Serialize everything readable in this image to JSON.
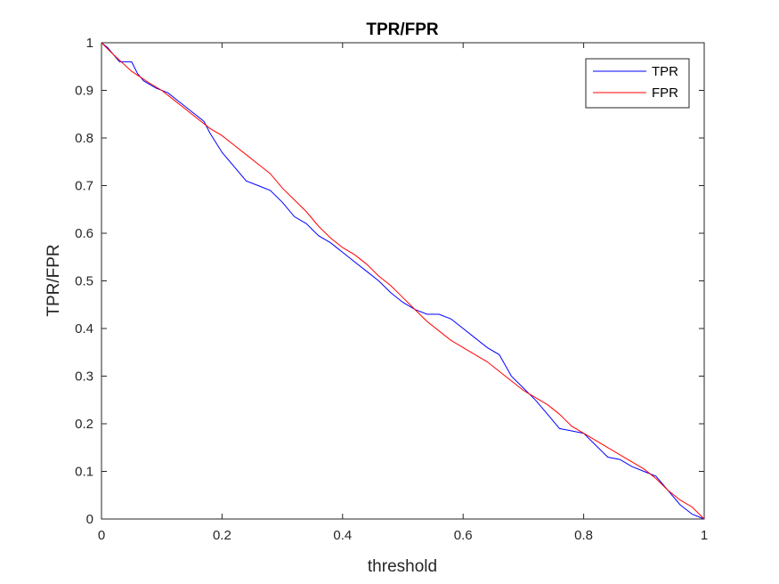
{
  "chart_data": {
    "type": "line",
    "title": "TPR/FPR",
    "xlabel": "threshold",
    "ylabel": "TPR/FPR",
    "xlim": [
      0,
      1
    ],
    "ylim": [
      0,
      1
    ],
    "xticks": [
      0,
      0.2,
      0.4,
      0.6,
      0.8,
      1
    ],
    "xtick_labels": [
      "0",
      "0.2",
      "0.4",
      "0.6",
      "0.8",
      "1"
    ],
    "yticks": [
      0,
      0.1,
      0.2,
      0.3,
      0.4,
      0.5,
      0.6,
      0.7,
      0.8,
      0.9,
      1
    ],
    "ytick_labels": [
      "0",
      "0.1",
      "0.2",
      "0.3",
      "0.4",
      "0.5",
      "0.6",
      "0.7",
      "0.8",
      "0.9",
      "1"
    ],
    "grid": false,
    "legend": {
      "position": "top-right"
    },
    "series": [
      {
        "name": "TPR",
        "color": "#0000ff",
        "x": [
          0,
          0.01,
          0.02,
          0.03,
          0.05,
          0.06,
          0.07,
          0.09,
          0.11,
          0.13,
          0.15,
          0.17,
          0.18,
          0.2,
          0.22,
          0.24,
          0.26,
          0.28,
          0.3,
          0.32,
          0.34,
          0.36,
          0.38,
          0.4,
          0.42,
          0.44,
          0.46,
          0.48,
          0.5,
          0.52,
          0.54,
          0.56,
          0.58,
          0.6,
          0.62,
          0.64,
          0.66,
          0.68,
          0.7,
          0.72,
          0.74,
          0.76,
          0.78,
          0.8,
          0.82,
          0.84,
          0.86,
          0.88,
          0.9,
          0.92,
          0.94,
          0.96,
          0.98,
          1
        ],
        "y": [
          1,
          0.99,
          0.975,
          0.96,
          0.96,
          0.935,
          0.92,
          0.905,
          0.895,
          0.875,
          0.855,
          0.835,
          0.81,
          0.77,
          0.74,
          0.71,
          0.7,
          0.69,
          0.665,
          0.635,
          0.62,
          0.595,
          0.58,
          0.56,
          0.54,
          0.52,
          0.5,
          0.475,
          0.455,
          0.44,
          0.43,
          0.43,
          0.42,
          0.4,
          0.38,
          0.36,
          0.345,
          0.3,
          0.275,
          0.25,
          0.22,
          0.19,
          0.185,
          0.18,
          0.155,
          0.13,
          0.125,
          0.11,
          0.1,
          0.09,
          0.06,
          0.03,
          0.01,
          0
        ]
      },
      {
        "name": "FPR",
        "color": "#ff0000",
        "x": [
          0,
          0.02,
          0.05,
          0.08,
          0.1,
          0.12,
          0.14,
          0.16,
          0.18,
          0.2,
          0.22,
          0.24,
          0.26,
          0.28,
          0.3,
          0.32,
          0.34,
          0.36,
          0.38,
          0.4,
          0.42,
          0.44,
          0.46,
          0.48,
          0.5,
          0.52,
          0.54,
          0.56,
          0.58,
          0.6,
          0.62,
          0.64,
          0.66,
          0.68,
          0.7,
          0.72,
          0.74,
          0.76,
          0.78,
          0.8,
          0.82,
          0.84,
          0.86,
          0.88,
          0.9,
          0.92,
          0.94,
          0.96,
          0.98,
          1
        ],
        "y": [
          1,
          0.975,
          0.94,
          0.915,
          0.9,
          0.88,
          0.86,
          0.84,
          0.82,
          0.805,
          0.785,
          0.765,
          0.745,
          0.725,
          0.695,
          0.67,
          0.645,
          0.615,
          0.59,
          0.57,
          0.555,
          0.535,
          0.51,
          0.49,
          0.465,
          0.44,
          0.415,
          0.395,
          0.375,
          0.36,
          0.345,
          0.33,
          0.31,
          0.29,
          0.27,
          0.255,
          0.24,
          0.22,
          0.195,
          0.18,
          0.165,
          0.15,
          0.135,
          0.12,
          0.105,
          0.085,
          0.06,
          0.04,
          0.025,
          0
        ]
      }
    ]
  }
}
